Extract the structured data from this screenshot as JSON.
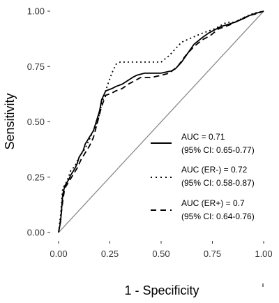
{
  "chart_data": {
    "type": "line",
    "xlabel": "1 - Specificity",
    "ylabel": "Sensitivity",
    "xlim": [
      0,
      1
    ],
    "ylim": [
      0,
      1
    ],
    "x_ticks": [
      "0.00",
      "0.25",
      "0.50",
      "0.75",
      "1.00"
    ],
    "y_ticks": [
      "0.00",
      "0.25",
      "0.50",
      "0.75",
      "1.00"
    ],
    "grid": false,
    "legend_position": "bottom-right",
    "reference_line": {
      "x": [
        0,
        1
      ],
      "y": [
        0,
        1
      ],
      "color": "#8c8c8c"
    },
    "series": [
      {
        "style": "solid",
        "color": "#000000",
        "legend_line1": "AUC = 0.71",
        "legend_line2": "(95% CI: 0.65-0.77)",
        "x": [
          0,
          0.01,
          0.02,
          0.03,
          0.05,
          0.06,
          0.08,
          0.09,
          0.1,
          0.12,
          0.13,
          0.15,
          0.17,
          0.19,
          0.2,
          0.21,
          0.22,
          0.23,
          0.26,
          0.28,
          0.31,
          0.36,
          0.38,
          0.42,
          0.5,
          0.55,
          0.57,
          0.6,
          0.63,
          0.66,
          0.7,
          0.73,
          0.79,
          0.86,
          0.91,
          0.93,
          0.96,
          1.0
        ],
        "y": [
          0,
          0.05,
          0.17,
          0.21,
          0.24,
          0.26,
          0.29,
          0.31,
          0.34,
          0.37,
          0.4,
          0.43,
          0.46,
          0.52,
          0.55,
          0.6,
          0.62,
          0.64,
          0.65,
          0.66,
          0.67,
          0.7,
          0.71,
          0.72,
          0.72,
          0.73,
          0.74,
          0.77,
          0.81,
          0.85,
          0.88,
          0.9,
          0.93,
          0.95,
          0.97,
          0.98,
          0.99,
          1.0
        ]
      },
      {
        "style": "dotted",
        "color": "#000000",
        "legend_line1": "AUC (ER-) = 0.72",
        "legend_line2": "(95% CI: 0.58-0.87)",
        "x": [
          0,
          0.01,
          0.02,
          0.04,
          0.06,
          0.08,
          0.1,
          0.13,
          0.16,
          0.19,
          0.21,
          0.23,
          0.24,
          0.26,
          0.28,
          0.3,
          0.4,
          0.5,
          0.54,
          0.56,
          0.6,
          0.65,
          0.7,
          0.76,
          0.82,
          0.86,
          0.9,
          0.95,
          1.0
        ],
        "y": [
          0,
          0.08,
          0.2,
          0.23,
          0.28,
          0.3,
          0.34,
          0.38,
          0.44,
          0.5,
          0.58,
          0.64,
          0.67,
          0.72,
          0.76,
          0.77,
          0.77,
          0.77,
          0.8,
          0.82,
          0.86,
          0.88,
          0.9,
          0.92,
          0.95,
          0.95,
          0.97,
          0.99,
          1.0
        ]
      },
      {
        "style": "dashed",
        "color": "#000000",
        "legend_line1": "AUC (ER+) = 0.7",
        "legend_line2": "(95% CI: 0.64-0.76)",
        "x": [
          0,
          0.01,
          0.02,
          0.03,
          0.05,
          0.07,
          0.09,
          0.11,
          0.13,
          0.15,
          0.17,
          0.19,
          0.21,
          0.23,
          0.26,
          0.28,
          0.31,
          0.34,
          0.36,
          0.4,
          0.45,
          0.5,
          0.54,
          0.58,
          0.62,
          0.66,
          0.7,
          0.74,
          0.78,
          0.84,
          0.88,
          0.93,
          0.97,
          1.0
        ],
        "y": [
          0,
          0.06,
          0.14,
          0.2,
          0.23,
          0.26,
          0.29,
          0.33,
          0.36,
          0.39,
          0.43,
          0.5,
          0.57,
          0.62,
          0.63,
          0.64,
          0.65,
          0.67,
          0.68,
          0.7,
          0.7,
          0.71,
          0.72,
          0.75,
          0.8,
          0.84,
          0.87,
          0.89,
          0.92,
          0.94,
          0.96,
          0.98,
          0.99,
          1.0
        ]
      }
    ]
  }
}
